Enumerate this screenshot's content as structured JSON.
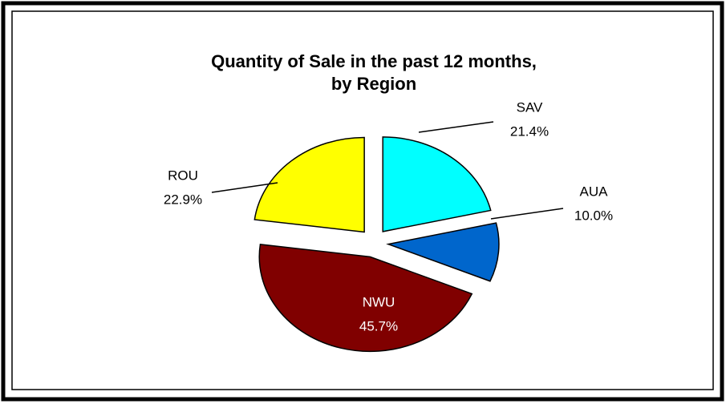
{
  "chart_data": {
    "type": "pie",
    "title": [
      "Quantity of Sale in the past 12 months,",
      "by Region"
    ],
    "categories": [
      "SAV",
      "AUA",
      "NWU",
      "ROU"
    ],
    "values": [
      21.4,
      10.0,
      45.7,
      22.9
    ],
    "value_labels": [
      "21.4%",
      "10.0%",
      "45.7%",
      "22.9%"
    ],
    "colors": [
      "#00ffff",
      "#0066cc",
      "#800000",
      "#ffff00"
    ]
  }
}
